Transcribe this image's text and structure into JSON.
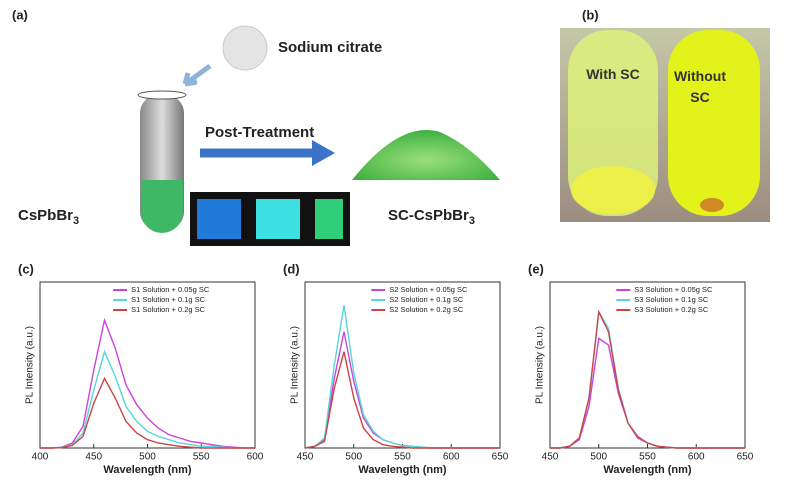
{
  "figure": {
    "panel_a": {
      "label": "(a)",
      "reagent": "Sodium citrate",
      "process": "Post-Treatment",
      "precursor": {
        "base": "CsPbBr",
        "sub": "3"
      },
      "product": {
        "base": "SC-CsPbBr",
        "sub": "3"
      }
    },
    "panel_b": {
      "label": "(b)",
      "left_tube": "With SC",
      "right_tube": "Without SC"
    }
  },
  "chart_data": [
    {
      "type": "line",
      "label": "(c)",
      "xlabel": "Wavelength (nm)",
      "ylabel": "PL Intensity (a.u.)",
      "x": [
        400,
        410,
        420,
        430,
        440,
        450,
        460,
        470,
        480,
        490,
        500,
        510,
        520,
        530,
        540,
        550,
        560,
        570,
        580,
        590,
        600
      ],
      "xlim": [
        400,
        600
      ],
      "xticks": [
        400,
        450,
        500,
        550,
        600
      ],
      "ylim": [
        0,
        1
      ],
      "series": [
        {
          "name": "S1 Solution + 0.05g SC",
          "color": "#cc44dd",
          "values": [
            0,
            0,
            0.004,
            0.03,
            0.13,
            0.47,
            0.77,
            0.6,
            0.38,
            0.26,
            0.18,
            0.12,
            0.08,
            0.06,
            0.04,
            0.03,
            0.02,
            0.01,
            0.005,
            0,
            0
          ]
        },
        {
          "name": "S1 Solution + 0.1g SC",
          "color": "#55d8d8",
          "values": [
            0,
            0,
            0.003,
            0.02,
            0.09,
            0.35,
            0.58,
            0.43,
            0.25,
            0.16,
            0.1,
            0.07,
            0.05,
            0.03,
            0.02,
            0.01,
            0.01,
            0.005,
            0,
            0,
            0
          ]
        },
        {
          "name": "S1 Solution + 0.2g SC",
          "color": "#cc4444",
          "values": [
            0,
            0,
            0.002,
            0.015,
            0.07,
            0.27,
            0.42,
            0.3,
            0.16,
            0.09,
            0.05,
            0.03,
            0.02,
            0.01,
            0.005,
            0,
            0,
            0,
            0,
            0,
            0
          ]
        }
      ]
    },
    {
      "type": "line",
      "label": "(d)",
      "xlabel": "Wavelength (nm)",
      "ylabel": "PL Intensity (a.u.)",
      "x": [
        450,
        460,
        470,
        480,
        490,
        500,
        510,
        520,
        530,
        540,
        550,
        560,
        570,
        580,
        590,
        600,
        610,
        620,
        630,
        640,
        650
      ],
      "xlim": [
        450,
        650
      ],
      "xticks": [
        450,
        500,
        550,
        600,
        650
      ],
      "ylim": [
        0,
        1
      ],
      "series": [
        {
          "name": "S2 Solution + 0.05g SC",
          "color": "#cc44dd",
          "values": [
            0,
            0.01,
            0.05,
            0.42,
            0.7,
            0.4,
            0.18,
            0.09,
            0.05,
            0.03,
            0.015,
            0.01,
            0.005,
            0,
            0,
            0,
            0,
            0,
            0,
            0,
            0
          ]
        },
        {
          "name": "S2 Solution + 0.1g SC",
          "color": "#55d8d8",
          "values": [
            0,
            0.01,
            0.06,
            0.5,
            0.86,
            0.45,
            0.2,
            0.1,
            0.05,
            0.03,
            0.015,
            0.01,
            0.005,
            0,
            0,
            0,
            0,
            0,
            0,
            0,
            0
          ]
        },
        {
          "name": "S2 Solution + 0.2g SC",
          "color": "#cc4444",
          "values": [
            0,
            0.01,
            0.04,
            0.36,
            0.58,
            0.3,
            0.12,
            0.05,
            0.02,
            0.01,
            0.005,
            0,
            0,
            0,
            0,
            0,
            0,
            0,
            0,
            0,
            0
          ]
        }
      ]
    },
    {
      "type": "line",
      "label": "(e)",
      "xlabel": "Wavelength (nm)",
      "ylabel": "PL Intensity (a.u.)",
      "x": [
        450,
        460,
        470,
        480,
        490,
        500,
        510,
        520,
        530,
        540,
        550,
        560,
        570,
        580,
        590,
        600,
        610,
        620,
        630,
        640,
        650
      ],
      "xlim": [
        450,
        650
      ],
      "xticks": [
        450,
        500,
        550,
        600,
        650
      ],
      "ylim": [
        0,
        1
      ],
      "series": [
        {
          "name": "S3 Solution + 0.05g SC",
          "color": "#cc44dd",
          "values": [
            0,
            0,
            0.01,
            0.05,
            0.25,
            0.66,
            0.62,
            0.33,
            0.15,
            0.07,
            0.03,
            0.01,
            0.005,
            0,
            0,
            0,
            0,
            0,
            0,
            0,
            0
          ]
        },
        {
          "name": "S3 Solution + 0.1g SC",
          "color": "#55d8d8",
          "values": [
            0,
            0,
            0.01,
            0.06,
            0.3,
            0.82,
            0.72,
            0.36,
            0.15,
            0.06,
            0.03,
            0.01,
            0.005,
            0,
            0,
            0,
            0,
            0,
            0,
            0,
            0
          ]
        },
        {
          "name": "S3 Solution + 0.2g SC",
          "color": "#cc4444",
          "values": [
            0,
            0,
            0.01,
            0.06,
            0.3,
            0.82,
            0.7,
            0.35,
            0.15,
            0.06,
            0.03,
            0.01,
            0.005,
            0,
            0,
            0,
            0,
            0,
            0,
            0,
            0
          ]
        }
      ]
    }
  ]
}
